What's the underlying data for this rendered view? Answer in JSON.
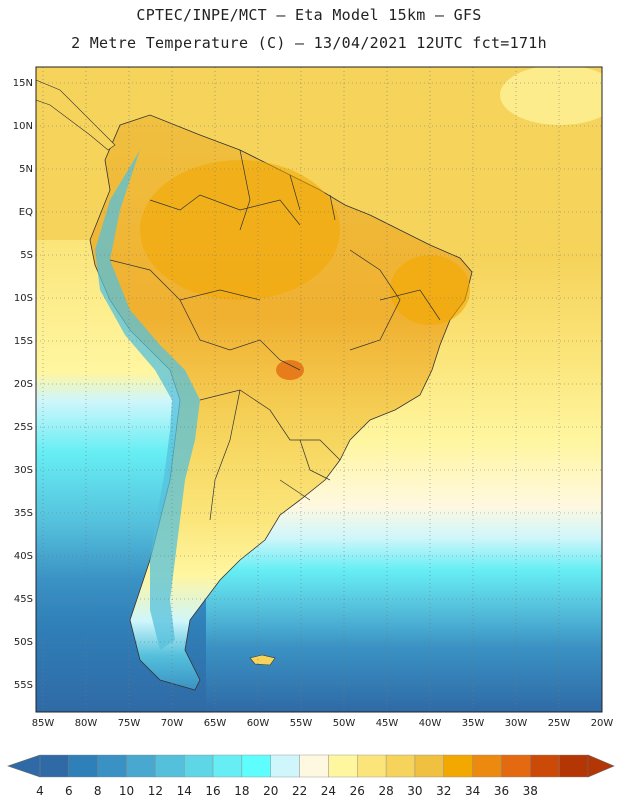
{
  "title_line1": "CPTEC/INPE/MCT  –   Eta Model 15km  –  GFS",
  "title_line2": "2 Metre Temperature (C) – 13/04/2021 12UTC fct=171h",
  "lat_labels": [
    "15N",
    "10N",
    "5N",
    "EQ",
    "5S",
    "10S",
    "15S",
    "20S",
    "25S",
    "30S",
    "35S",
    "40S",
    "45S",
    "50S",
    "55S"
  ],
  "lon_labels": [
    "85W",
    "80W",
    "75W",
    "70W",
    "65W",
    "60W",
    "55W",
    "50W",
    "45W",
    "40W",
    "35W",
    "30W",
    "25W",
    "20W"
  ],
  "colorbar": {
    "labels": [
      "4",
      "6",
      "8",
      "10",
      "12",
      "14",
      "16",
      "18",
      "20",
      "22",
      "24",
      "26",
      "28",
      "30",
      "32",
      "34",
      "36",
      "38"
    ],
    "colors": [
      "#2f6aa6",
      "#2f7fb8",
      "#3a92c4",
      "#48a8d0",
      "#55c0dc",
      "#5fd6e6",
      "#66eef4",
      "#5ffefe",
      "#cff6fb",
      "#fff8e0",
      "#fff6a0",
      "#fbe57a",
      "#f6d45c",
      "#f0c040",
      "#f3a800",
      "#ec8a10",
      "#e36a10",
      "#cc4a08",
      "#b43604"
    ]
  }
}
